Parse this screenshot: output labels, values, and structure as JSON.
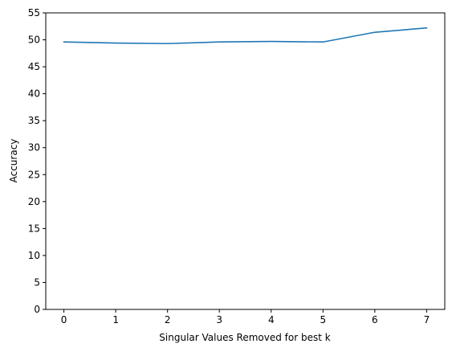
{
  "chart_data": {
    "type": "line",
    "title": "",
    "xlabel": "Singular Values Removed for best k",
    "ylabel": "Accuracy",
    "xlim": [
      -0.35,
      7.35
    ],
    "ylim": [
      0,
      55
    ],
    "xticks": [
      0,
      1,
      2,
      3,
      4,
      5,
      6,
      7
    ],
    "yticks": [
      0,
      5,
      10,
      15,
      20,
      25,
      30,
      35,
      40,
      45,
      50,
      55
    ],
    "grid": false,
    "series": [
      {
        "color": "#1f77b4",
        "x": [
          0,
          1,
          2,
          3,
          4,
          5,
          6,
          7
        ],
        "y": [
          49.6,
          49.4,
          49.3,
          49.6,
          49.7,
          49.6,
          51.4,
          52.2
        ]
      }
    ]
  }
}
